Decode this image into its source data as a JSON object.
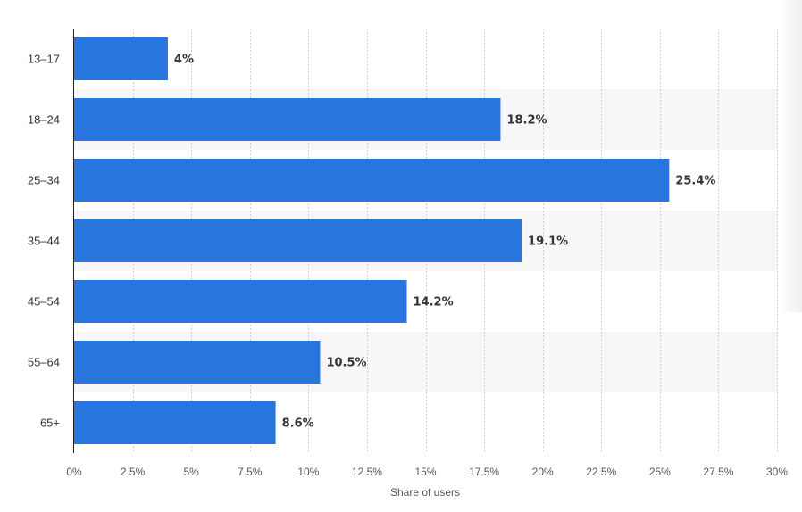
{
  "chart_data": {
    "type": "bar",
    "orientation": "horizontal",
    "categories": [
      "13-17",
      "18-24",
      "25-34",
      "35-44",
      "45-54",
      "55-64",
      "65+"
    ],
    "values": [
      4,
      18.2,
      25.4,
      19.1,
      14.2,
      10.5,
      8.6
    ],
    "value_labels": [
      "4%",
      "18.2%",
      "25.4%",
      "19.1%",
      "14.2%",
      "10.5%",
      "8.6%"
    ],
    "category_labels": [
      "13–17",
      "18–24",
      "25–34",
      "35–44",
      "45–54",
      "55–64",
      "65+"
    ],
    "xlabel": "Share of users",
    "ylabel": "",
    "xlim": [
      0,
      30
    ],
    "x_ticks": [
      0,
      2.5,
      5,
      7.5,
      10,
      12.5,
      15,
      17.5,
      20,
      22.5,
      25,
      27.5,
      30
    ],
    "x_tick_labels": [
      "0%",
      "2.5%",
      "5%",
      "7.5%",
      "10%",
      "12.5%",
      "15%",
      "17.5%",
      "20%",
      "22.5%",
      "25%",
      "27.5%",
      "30%"
    ],
    "grid": true,
    "bar_color": "#2876dd",
    "band_color": "#f7f7f7",
    "legend": "none"
  }
}
